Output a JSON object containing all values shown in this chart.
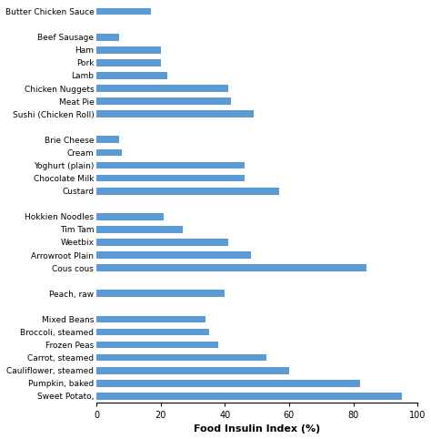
{
  "categories": [
    "Butter Chicken Sauce",
    "",
    "Beef Sausage",
    "Ham",
    "Pork",
    "Lamb",
    "Chicken Nuggets",
    "Meat Pie",
    "Sushi (Chicken Roll)",
    "",
    "Brie Cheese",
    "Cream",
    "Yoghurt (plain)",
    "Chocolate Milk",
    "Custard",
    "",
    "Hokkien Noodles",
    "Tim Tam",
    "Weetbix",
    "Arrowroot Plain",
    "Cous cous",
    "",
    "Peach, raw",
    "",
    "Mixed Beans",
    "Broccoli, steamed",
    "Frozen Peas",
    "Carrot, steamed",
    "Cauliflower, steamed",
    "Pumpkin, baked",
    "Sweet Potato,"
  ],
  "values": [
    17,
    0,
    7,
    20,
    20,
    22,
    41,
    42,
    49,
    0,
    7,
    8,
    46,
    46,
    57,
    0,
    21,
    27,
    41,
    48,
    84,
    0,
    40,
    0,
    34,
    35,
    38,
    53,
    60,
    82,
    95
  ],
  "bar_color": "#5b9bd5",
  "xlabel": "Food Insulin Index (%)",
  "xlim": [
    0,
    100
  ],
  "xticks": [
    0,
    20,
    40,
    60,
    80,
    100
  ],
  "figsize": [
    4.74,
    4.82
  ],
  "dpi": 100,
  "xlabel_fontsize": 8,
  "tick_fontsize": 6.5,
  "xtick_fontsize": 7
}
